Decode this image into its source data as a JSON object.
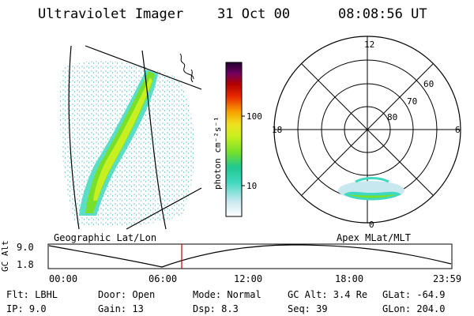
{
  "header": {
    "title": "Ultraviolet Imager",
    "date": "31 Oct 00",
    "time": "08:08:56 UT"
  },
  "geo_panel": {
    "label": "Geographic Lat/Lon"
  },
  "polar_panel": {
    "label": "Apex MLat/MLT",
    "mlt_labels": {
      "top": "12",
      "left": "18",
      "right": "6",
      "bottom": "0"
    },
    "lat_labels": [
      "60",
      "70",
      "80"
    ]
  },
  "colorbar": {
    "unit_label": "photon cm⁻²s⁻¹",
    "ticks": [
      "100",
      "10"
    ]
  },
  "altitude_plot": {
    "ylabel": "GC Alt",
    "ytick_high": "9.0",
    "ytick_low": "1.8",
    "xticks": [
      "00:00",
      "06:00",
      "12:00",
      "18:00",
      "23:59"
    ]
  },
  "info": {
    "flt": "Flt: LBHL",
    "ip": "IP:  9.0",
    "door": "Door: Open",
    "gain": "Gain: 13",
    "mode": "Mode: Normal",
    "dsp": "Dsp:     8.3",
    "gc_alt": "GC Alt: 3.4 Re",
    "seq": "Seq: 39",
    "glat": "GLat:  -64.9",
    "glon": "GLon:  204.0"
  },
  "colors": {
    "marker": "#c00000",
    "colormap": [
      "#ffffff",
      "#c8e8f0",
      "#40d8c0",
      "#20c890",
      "#78e028",
      "#c8f020",
      "#f0e020",
      "#f8a000",
      "#e82800",
      "#b00000",
      "#700060",
      "#200030"
    ]
  }
}
